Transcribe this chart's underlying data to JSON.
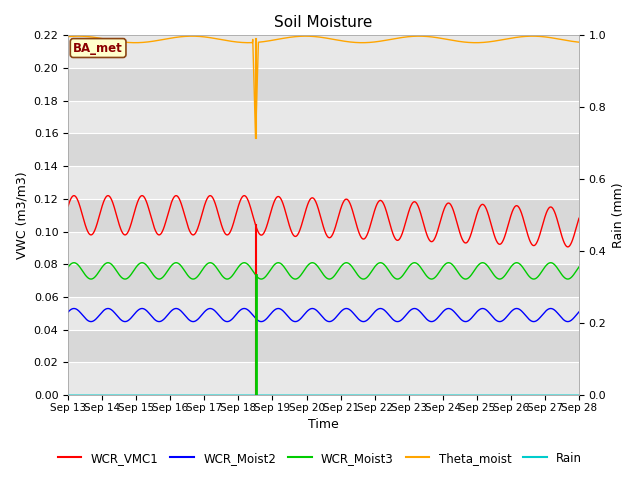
{
  "title": "Soil Moisture",
  "xlabel": "Time",
  "ylabel_left": "VWC (m3/m3)",
  "ylabel_right": "Rain (mm)",
  "ylim_left": [
    0.0,
    0.22
  ],
  "ylim_right": [
    0.0,
    1.0
  ],
  "n_days": 15,
  "xtick_labels": [
    "Sep 13",
    "Sep 14",
    "Sep 15",
    "Sep 16",
    "Sep 17",
    "Sep 18",
    "Sep 19",
    "Sep 20",
    "Sep 21",
    "Sep 22",
    "Sep 23",
    "Sep 24",
    "Sep 25",
    "Sep 26",
    "Sep 27",
    "Sep 28"
  ],
  "site_label": "BA_met",
  "site_label_color": "#8B0000",
  "site_label_bg": "#FFFFCC",
  "site_label_border": "#8B4513",
  "colors": {
    "WCR_VMC1": "#FF0000",
    "WCR_Moist2": "#0000FF",
    "WCR_Moist3": "#00CC00",
    "Theta_moist": "#FFA500",
    "Rain": "#00CCCC"
  },
  "bg_color_light": "#E8E8E8",
  "bg_color_dark": "#D8D8D8",
  "grid_color": "#FFFFFF",
  "font_size": 9,
  "title_font_size": 11,
  "spike_day": 5.5,
  "wcr_vmc1_base": 0.11,
  "wcr_vmc1_amp": 0.012,
  "wcr_moist2_base": 0.049,
  "wcr_moist2_amp": 0.004,
  "wcr_moist3_base": 0.076,
  "wcr_moist3_amp": 0.005,
  "theta_base": 0.2175,
  "theta_amp": 0.002,
  "rain_base": 0.0
}
